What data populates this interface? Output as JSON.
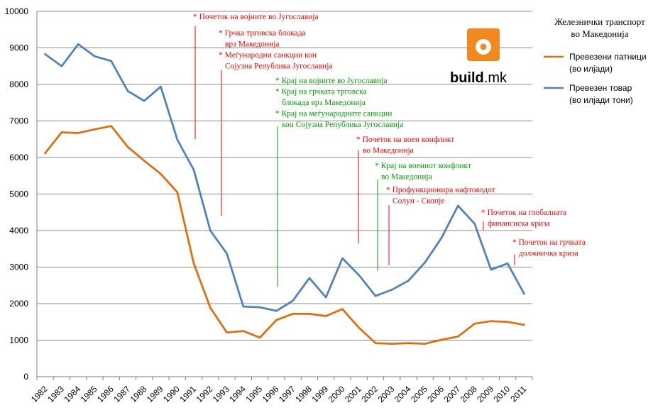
{
  "chart_data": {
    "type": "line",
    "title": "Железнички транспорт во Македонија",
    "categories": [
      "1982",
      "1983",
      "1984",
      "1985",
      "1986",
      "1987",
      "1988",
      "1989",
      "1990",
      "1991",
      "1992",
      "1993",
      "1994",
      "1995",
      "1996",
      "1997",
      "1998",
      "1999",
      "2000",
      "2001",
      "2002",
      "2003",
      "2004",
      "2005",
      "2006",
      "2007",
      "2008",
      "2009",
      "2010",
      "2011"
    ],
    "ylim": [
      0,
      10000
    ],
    "yticks": [
      "0",
      "1000",
      "2000",
      "3000",
      "4000",
      "5000",
      "6000",
      "7000",
      "8000",
      "9000",
      "10000"
    ],
    "grid": true,
    "legend_position": "top-right",
    "series": [
      {
        "name": "Превезени патници",
        "name_line2": "(во илјади)",
        "color": "#E46C0A",
        "values": [
          6120,
          6690,
          6670,
          6770,
          6860,
          6290,
          5910,
          5550,
          5050,
          3100,
          1890,
          1210,
          1250,
          1070,
          1550,
          1720,
          1720,
          1660,
          1850,
          1340,
          920,
          900,
          920,
          900,
          1010,
          1100,
          1450,
          1520,
          1500,
          1420
        ]
      },
      {
        "name": "Превезен товар",
        "name_line2": "(во илјади тони)",
        "color": "#4F81BD",
        "values": [
          8830,
          8500,
          9100,
          8770,
          8640,
          7820,
          7550,
          7940,
          6490,
          5660,
          4000,
          3370,
          1920,
          1900,
          1800,
          2080,
          2700,
          2170,
          3240,
          2780,
          2210,
          2380,
          2630,
          3130,
          3800,
          4680,
          4190,
          2930,
          3100,
          2270
        ]
      }
    ],
    "annotations": [
      {
        "lines": [
          "* Почеток на војните во Југославија"
        ],
        "color": "#FF0000",
        "x": "1991",
        "y_top": 9600,
        "y_bottom": 6500
      },
      {
        "lines": [
          "* Грчка трговска блокада",
          "врз Македонија",
          "* Меѓународни санкции кон",
          "Сојузна Република Југославија"
        ],
        "color": "#FF0000",
        "x": "1992",
        "y_top": 8400,
        "y_bottom": 4400
      },
      {
        "lines": [
          "* Крај на војните во Југославија",
          "* Крај на грчката трговска",
          "блокада врз Македонија",
          "* Крај на меѓународните санкции",
          "кон Сојузна Република Југославија"
        ],
        "color": "#00A000",
        "x": "1996",
        "y_top": 6850,
        "y_bottom": 2450
      },
      {
        "lines": [
          "* Почеток на воен конфликт",
          "во Македонија"
        ],
        "color": "#FF0000",
        "x": "2001",
        "y_top": 6200,
        "y_bottom": 3650
      },
      {
        "lines": [
          "* Крај на воениот конфликт",
          "во Македонија"
        ],
        "color": "#00A000",
        "x": "2002",
        "y_top": 5400,
        "y_bottom": 2900
      },
      {
        "lines": [
          "* Профункционира нафтоводот",
          "Солун - Скопје"
        ],
        "color": "#FF0000",
        "x": "2003",
        "y_top": 4700,
        "y_bottom": 3050
      },
      {
        "lines": [
          "* Почеток на глобалната",
          "финансиска криза"
        ],
        "color": "#FF0000",
        "x": "2008",
        "y_top": 4250,
        "y_bottom": 4000
      },
      {
        "lines": [
          "* Почеток на грчката",
          "должничка криза"
        ],
        "color": "#FF0000",
        "x": "2010",
        "y_top": 3350,
        "y_bottom": 3050
      }
    ]
  },
  "logo": {
    "word_bold": "build",
    "word_rest": ".mk",
    "color": "#F08A1E"
  }
}
